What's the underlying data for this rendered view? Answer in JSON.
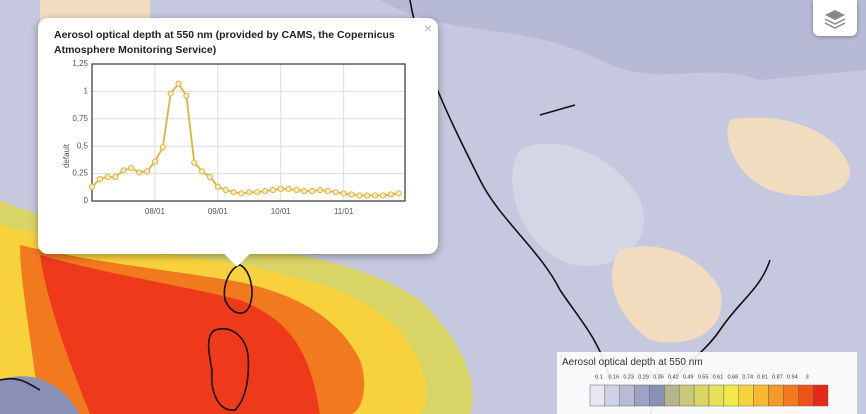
{
  "chart_data": {
    "type": "line",
    "title": "Aerosol optical depth at 550 nm (provided by CAMS, the Copernicus Atmosphere Monitoring Service)",
    "ylabel": "default",
    "categories": [
      null,
      null,
      null,
      null,
      null,
      null,
      null,
      null,
      "08/01",
      null,
      null,
      null,
      null,
      null,
      null,
      null,
      "09/01",
      null,
      null,
      null,
      null,
      null,
      null,
      null,
      "10/01",
      null,
      null,
      null,
      null,
      null,
      null,
      null,
      "11/01",
      null,
      null,
      null,
      null,
      null,
      null,
      null
    ],
    "series": [
      {
        "color": "#e0b43c",
        "values": [
          0.13,
          0.2,
          0.22,
          0.22,
          0.28,
          0.3,
          0.26,
          0.27,
          0.36,
          0.49,
          0.98,
          1.07,
          0.96,
          0.35,
          0.27,
          0.22,
          0.13,
          0.1,
          0.08,
          0.07,
          0.08,
          0.08,
          0.09,
          0.1,
          0.11,
          0.11,
          0.1,
          0.09,
          0.09,
          0.1,
          0.09,
          0.08,
          0.07,
          0.06,
          0.05,
          0.05,
          0.05,
          0.05,
          0.06,
          0.07
        ]
      }
    ],
    "ylim": [
      0,
      1.25
    ],
    "yticks": [
      0,
      {
        "value": 0.25,
        "label": "0,25"
      },
      {
        "value": 0.5,
        "label": "0,5"
      },
      {
        "value": 0.75,
        "label": "0,75"
      },
      1,
      {
        "value": 1.25,
        "label": "1,25"
      }
    ],
    "grid": true
  },
  "popup": {
    "close": "×"
  },
  "legend": {
    "title": "Aerosol optical depth at 550 nm",
    "thresholds": [
      0.1,
      0.16,
      0.23,
      0.29,
      0.36,
      0.42,
      0.49,
      0.55,
      0.61,
      0.68,
      0.74,
      0.81,
      0.87,
      0.94,
      3
    ],
    "colors": [
      "#e6e7f0",
      "#cfd1e4",
      "#b7bbd6",
      "#9ea3c6",
      "#8a8fb5",
      "#b5b58c",
      "#c9c77a",
      "#d9d466",
      "#e8e25a",
      "#f3ea4a",
      "#f8d23c",
      "#f8b830",
      "#f59a26",
      "#f27a1e",
      "#ee5418",
      "#e8261a"
    ]
  }
}
